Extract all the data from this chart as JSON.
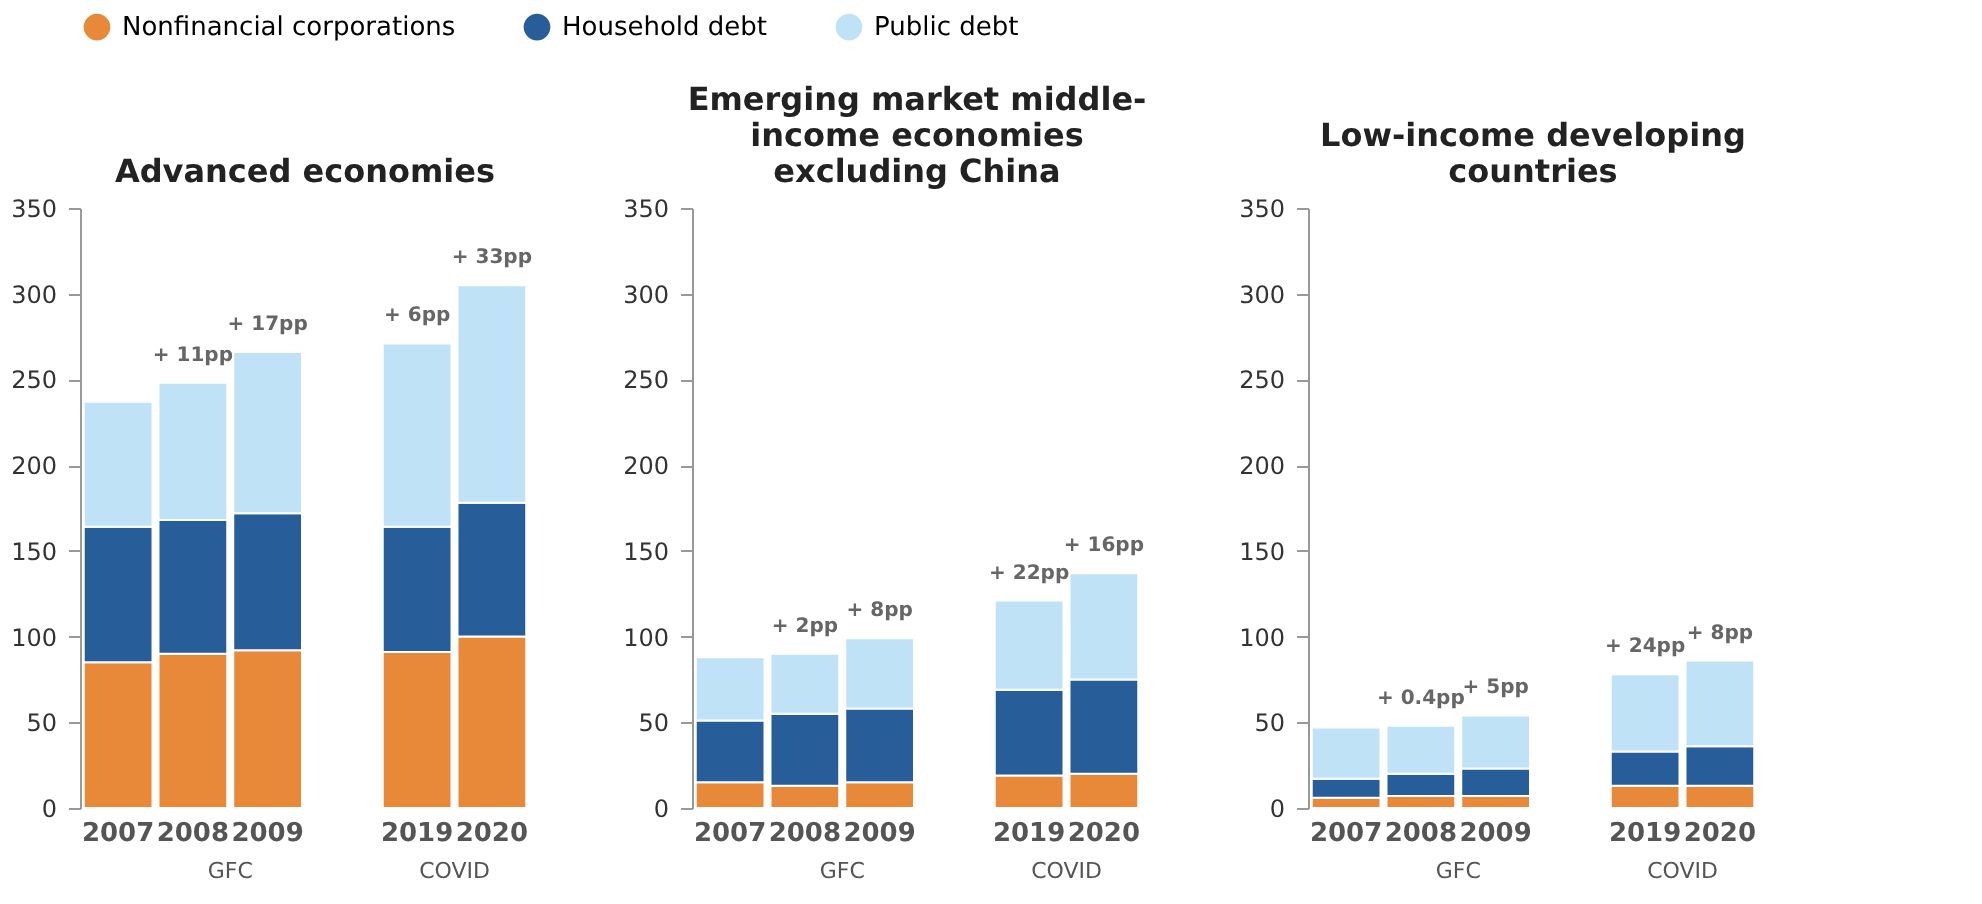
{
  "chart_data": [
    {
      "type": "bar",
      "title": "Advanced economies",
      "stacked": true,
      "legend": "top",
      "categories": [
        "2007",
        "2008",
        "2009",
        null,
        "2019",
        "2020"
      ],
      "ylim": [
        0,
        350
      ],
      "yticks": [
        0,
        50,
        100,
        150,
        200,
        250,
        300,
        350
      ],
      "series": [
        {
          "name": "Nonfinancial corporations",
          "color": "#e8893a",
          "values": [
            85,
            90,
            92,
            null,
            91,
            100
          ]
        },
        {
          "name": "Household debt",
          "color": "#275d98",
          "values": [
            79,
            78,
            80,
            null,
            73,
            78
          ]
        },
        {
          "name": "Public debt",
          "color": "#bfe2f6",
          "values": [
            73,
            80,
            94,
            null,
            107,
            127
          ]
        }
      ],
      "annotations": [
        {
          "text": "+ 11pp",
          "x": "2008",
          "y": 248
        },
        {
          "text": "+ 17pp",
          "x": "2009",
          "y": 266
        },
        {
          "text": "+ 6pp",
          "x": "2019",
          "y": 271
        },
        {
          "text": "+ 33pp",
          "x": "2020",
          "y": 305
        },
        "GFC",
        "COVID"
      ]
    },
    {
      "type": "bar",
      "title": "Emerging market middle-income economies excluding China",
      "stacked": true,
      "legend": "top",
      "categories": [
        "2007",
        "2008",
        "2009",
        null,
        "2019",
        "2020"
      ],
      "ylim": [
        0,
        350
      ],
      "yticks": [
        0,
        50,
        100,
        150,
        200,
        250,
        300,
        350
      ],
      "series": [
        {
          "name": "Nonfinancial corporations",
          "color": "#e8893a",
          "values": [
            15,
            13,
            15,
            null,
            19,
            20
          ]
        },
        {
          "name": "Household debt",
          "color": "#275d98",
          "values": [
            36,
            42,
            43,
            null,
            50,
            55
          ]
        },
        {
          "name": "Public debt",
          "color": "#bfe2f6",
          "values": [
            37,
            35,
            41,
            null,
            52,
            62
          ]
        }
      ],
      "annotations": [
        {
          "text": "+ 2pp",
          "x": "2008",
          "y": 90
        },
        {
          "text": "+ 8pp",
          "x": "2009",
          "y": 99
        },
        {
          "text": "+ 22pp",
          "x": "2019",
          "y": 121
        },
        {
          "text": "+ 16pp",
          "x": "2020",
          "y": 137
        },
        "GFC",
        "COVID"
      ]
    },
    {
      "type": "bar",
      "title": "Low-income developing countries",
      "stacked": true,
      "legend": "top",
      "categories": [
        "2007",
        "2008",
        "2009",
        null,
        "2019",
        "2020"
      ],
      "ylim": [
        0,
        350
      ],
      "yticks": [
        0,
        50,
        100,
        150,
        200,
        250,
        300,
        350
      ],
      "series": [
        {
          "name": "Nonfinancial corporations",
          "color": "#e8893a",
          "values": [
            6,
            7,
            7,
            null,
            13,
            13
          ]
        },
        {
          "name": "Household debt",
          "color": "#275d98",
          "values": [
            11,
            13,
            16,
            null,
            20,
            23
          ]
        },
        {
          "name": "Public debt",
          "color": "#bfe2f6",
          "values": [
            30,
            28,
            31,
            null,
            45,
            50
          ]
        }
      ],
      "annotations": [
        {
          "text": "+ 0.4pp",
          "x": "2008",
          "y": 48
        },
        {
          "text": "+ 5pp",
          "x": "2009",
          "y": 54
        },
        {
          "text": "+ 24pp",
          "x": "2019",
          "y": 78
        },
        {
          "text": "+ 8pp",
          "x": "2020",
          "y": 86
        },
        "GFC",
        "COVID"
      ]
    }
  ]
}
